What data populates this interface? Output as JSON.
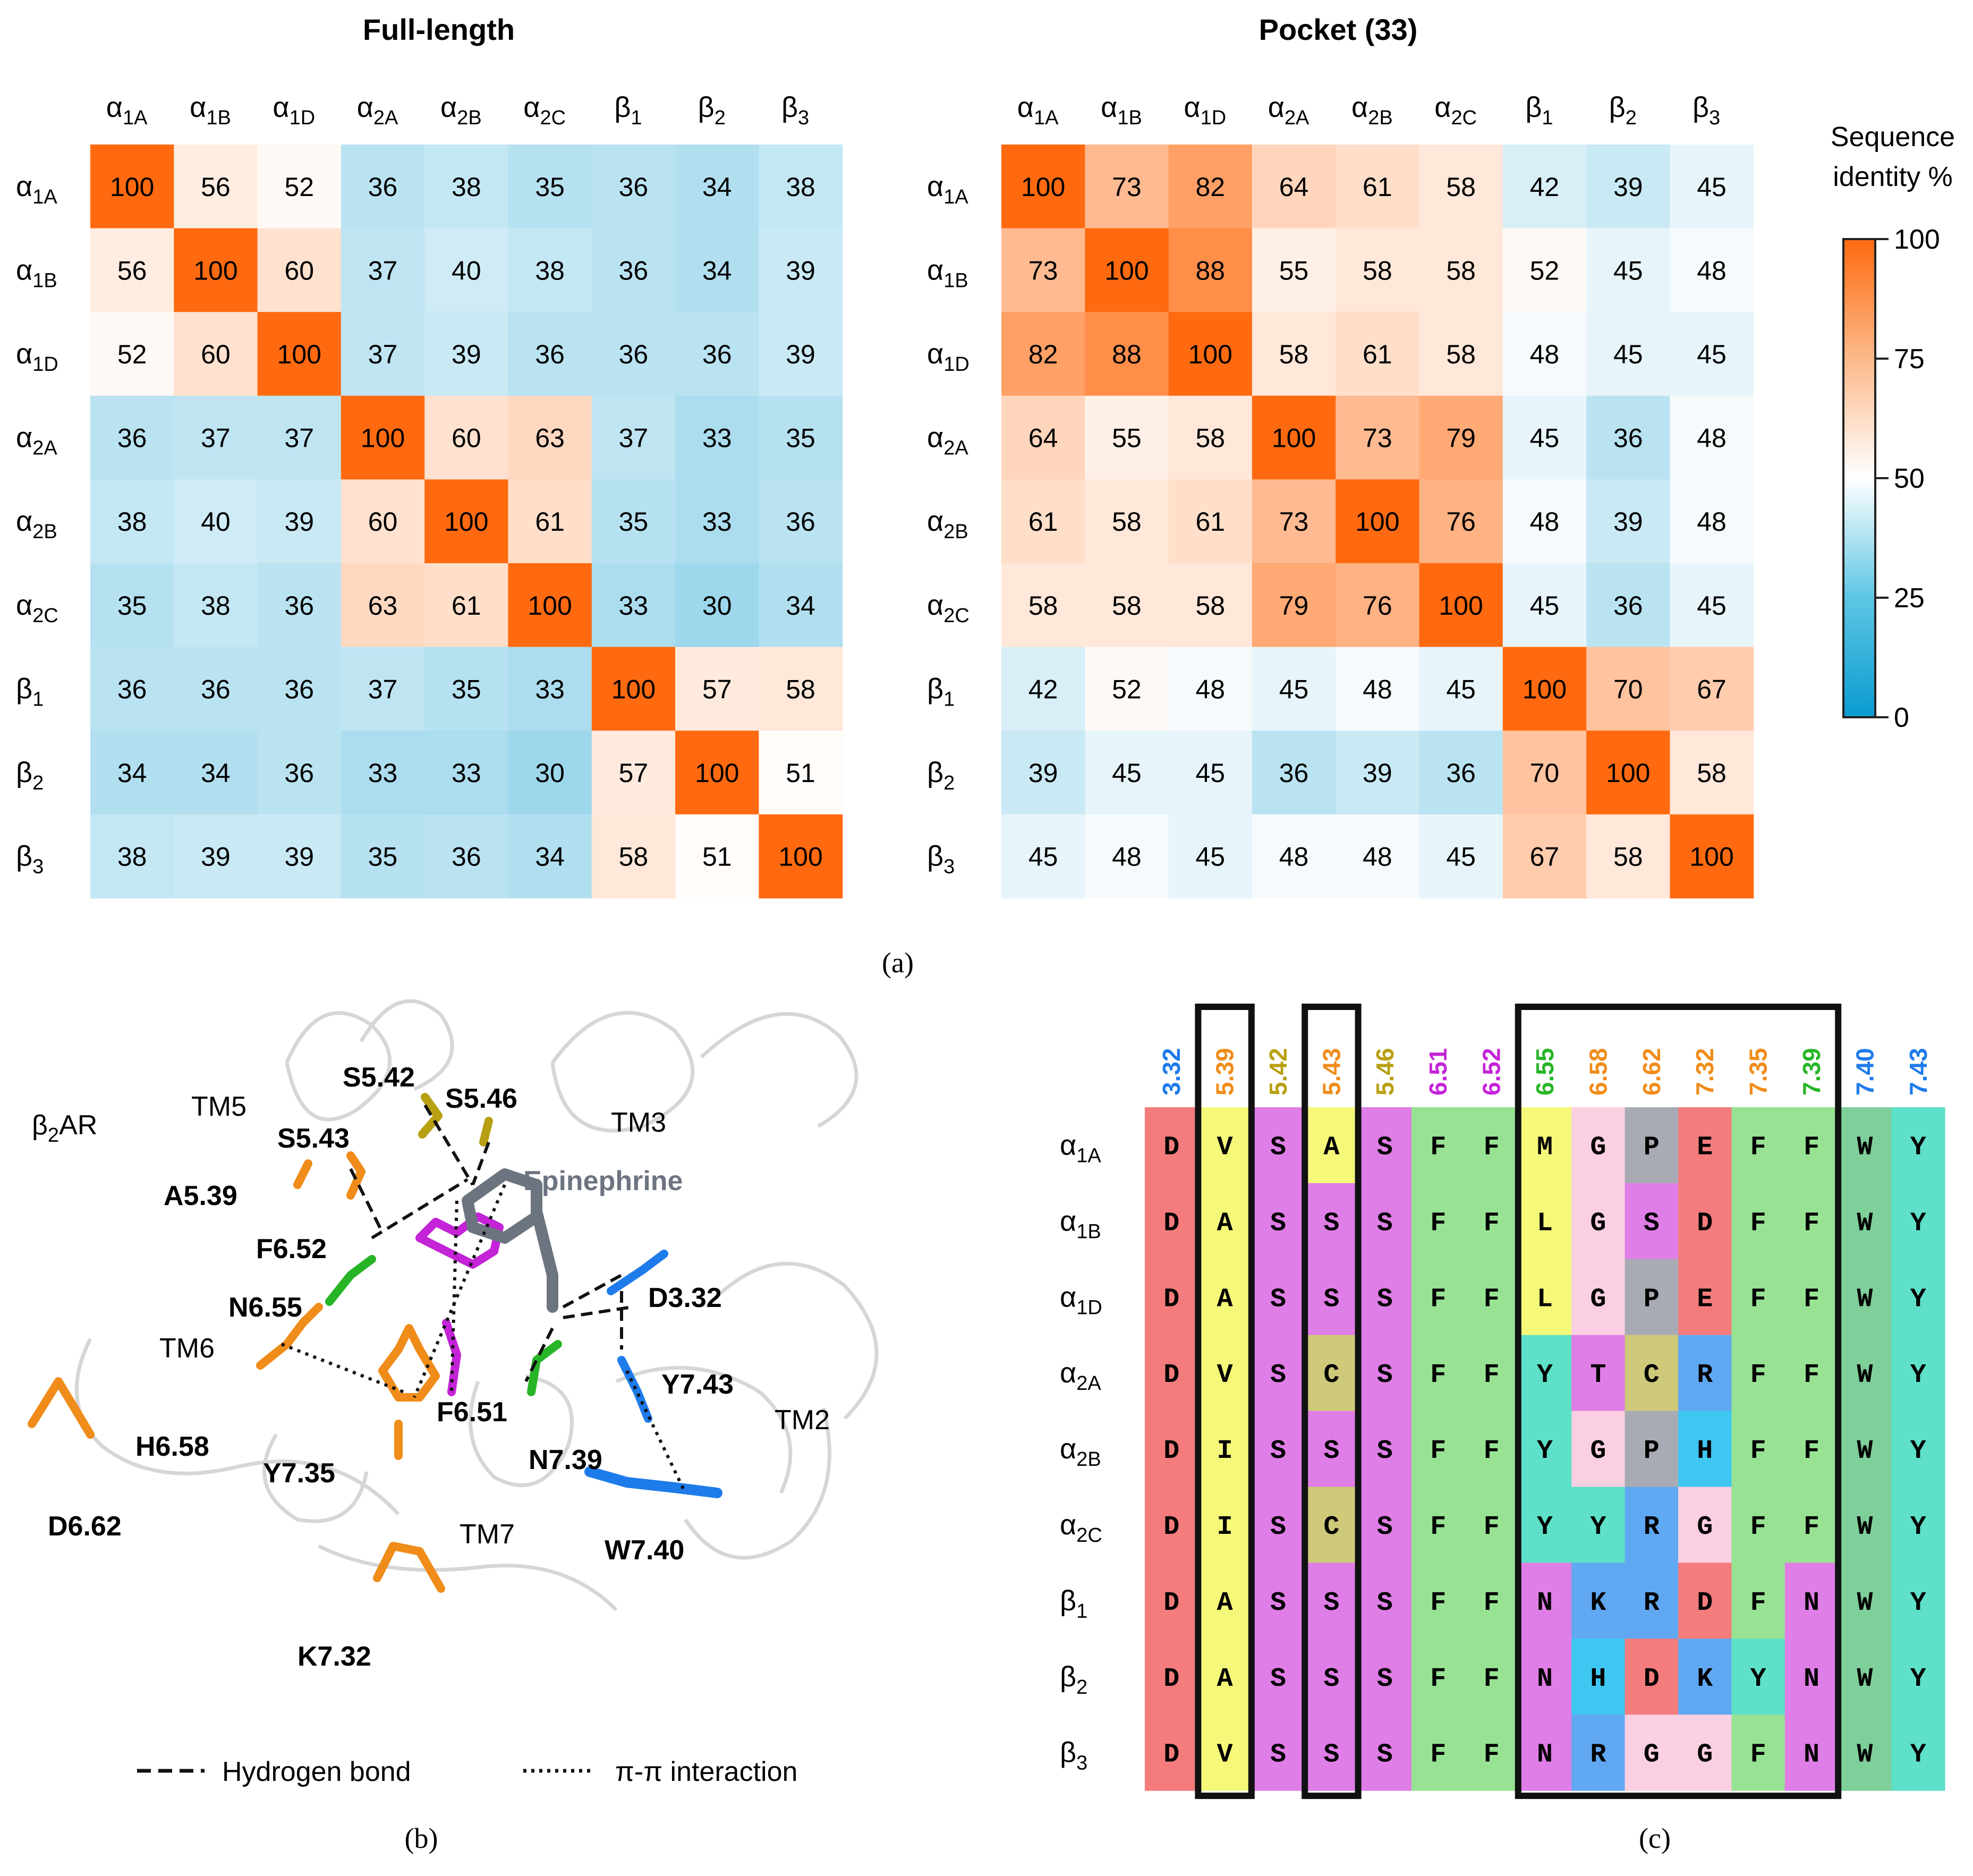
{
  "heatmaps": [
    {
      "title": "Full-length",
      "labels": [
        {
          "base": "α",
          "sub": "1A"
        },
        {
          "base": "α",
          "sub": "1B"
        },
        {
          "base": "α",
          "sub": "1D"
        },
        {
          "base": "α",
          "sub": "2A"
        },
        {
          "base": "α",
          "sub": "2B"
        },
        {
          "base": "α",
          "sub": "2C"
        },
        {
          "base": "β",
          "sub": "1"
        },
        {
          "base": "β",
          "sub": "2"
        },
        {
          "base": "β",
          "sub": "3"
        }
      ],
      "matrix": [
        [
          100,
          56,
          52,
          36,
          38,
          35,
          36,
          34,
          38
        ],
        [
          56,
          100,
          60,
          37,
          40,
          38,
          36,
          34,
          39
        ],
        [
          52,
          60,
          100,
          37,
          39,
          36,
          36,
          36,
          39
        ],
        [
          36,
          37,
          37,
          100,
          60,
          63,
          37,
          33,
          35
        ],
        [
          38,
          40,
          39,
          60,
          100,
          61,
          35,
          33,
          36
        ],
        [
          35,
          38,
          36,
          63,
          61,
          100,
          33,
          30,
          34
        ],
        [
          36,
          36,
          36,
          37,
          35,
          33,
          100,
          57,
          58
        ],
        [
          34,
          34,
          36,
          33,
          33,
          30,
          57,
          100,
          51
        ],
        [
          38,
          39,
          39,
          35,
          36,
          34,
          58,
          51,
          100
        ]
      ]
    },
    {
      "title": "Pocket (33)",
      "labels": [
        {
          "base": "α",
          "sub": "1A"
        },
        {
          "base": "α",
          "sub": "1B"
        },
        {
          "base": "α",
          "sub": "1D"
        },
        {
          "base": "α",
          "sub": "2A"
        },
        {
          "base": "α",
          "sub": "2B"
        },
        {
          "base": "α",
          "sub": "2C"
        },
        {
          "base": "β",
          "sub": "1"
        },
        {
          "base": "β",
          "sub": "2"
        },
        {
          "base": "β",
          "sub": "3"
        }
      ],
      "matrix": [
        [
          100,
          73,
          82,
          64,
          61,
          58,
          42,
          39,
          45
        ],
        [
          73,
          100,
          88,
          55,
          58,
          58,
          52,
          45,
          48
        ],
        [
          82,
          88,
          100,
          58,
          61,
          58,
          48,
          45,
          45
        ],
        [
          64,
          55,
          58,
          100,
          73,
          79,
          45,
          36,
          48
        ],
        [
          61,
          58,
          61,
          73,
          100,
          76,
          48,
          39,
          48
        ],
        [
          58,
          58,
          58,
          79,
          76,
          100,
          45,
          36,
          45
        ],
        [
          42,
          52,
          48,
          45,
          48,
          45,
          100,
          70,
          67
        ],
        [
          39,
          45,
          45,
          36,
          39,
          36,
          70,
          100,
          58
        ],
        [
          45,
          48,
          45,
          48,
          48,
          45,
          67,
          58,
          100
        ]
      ]
    }
  ],
  "chart_data": {
    "type": "heatmap",
    "panels": [
      "Full-length",
      "Pocket (33)"
    ],
    "row_labels": [
      "α1A",
      "α1B",
      "α1D",
      "α2A",
      "α2B",
      "α2C",
      "β1",
      "β2",
      "β3"
    ],
    "col_labels": [
      "α1A",
      "α1B",
      "α1D",
      "α2A",
      "α2B",
      "α2C",
      "β1",
      "β2",
      "β3"
    ],
    "value_range": [
      0,
      100
    ],
    "colorbar_label": "Sequence identity %"
  },
  "colorbar": {
    "title_line1": "Sequence",
    "title_line2": "identity %",
    "ticks": [
      "100",
      "75",
      "50",
      "25",
      "0"
    ],
    "low_color": "#0a9bd0",
    "mid_color": "#ffffff",
    "high_color": "#ff6a10"
  },
  "caption_a": "(a)",
  "caption_b": "(b)",
  "caption_c": "(c)",
  "structure": {
    "receptor": {
      "base": "β",
      "sub": "2",
      "rest": "AR"
    },
    "ligand": "Epinephrine",
    "helices": [
      "TM5",
      "TM3",
      "TM6",
      "TM2",
      "TM7"
    ],
    "residues": [
      {
        "label": "S5.42",
        "color": "#b8a012"
      },
      {
        "label": "S5.46",
        "color": "#b8a012"
      },
      {
        "label": "S5.43",
        "color": "#f08c1a"
      },
      {
        "label": "A5.39",
        "color": "#f08c1a"
      },
      {
        "label": "F6.52",
        "color": "#c423d8"
      },
      {
        "label": "N6.55",
        "color": "#27b527"
      },
      {
        "label": "D3.32",
        "color": "#1e7bea"
      },
      {
        "label": "Y7.43",
        "color": "#1e7bea"
      },
      {
        "label": "F6.51",
        "color": "#c423d8"
      },
      {
        "label": "H6.58",
        "color": "#f08c1a"
      },
      {
        "label": "Y7.35",
        "color": "#f08c1a"
      },
      {
        "label": "N7.39",
        "color": "#27b527"
      },
      {
        "label": "D6.62",
        "color": "#f08c1a"
      },
      {
        "label": "W7.40",
        "color": "#1e7bea"
      },
      {
        "label": "K7.32",
        "color": "#f08c1a"
      }
    ],
    "legend_hbond": "Hydrogen bond",
    "legend_pipi": "π-π interaction"
  },
  "alignment": {
    "positions": [
      {
        "label": "3.32",
        "color": "#1e7bea"
      },
      {
        "label": "5.39",
        "color": "#f08c1a"
      },
      {
        "label": "5.42",
        "color": "#b8a012"
      },
      {
        "label": "5.43",
        "color": "#f08c1a"
      },
      {
        "label": "5.46",
        "color": "#b8a012"
      },
      {
        "label": "6.51",
        "color": "#c423d8"
      },
      {
        "label": "6.52",
        "color": "#c423d8"
      },
      {
        "label": "6.55",
        "color": "#27b527"
      },
      {
        "label": "6.58",
        "color": "#f08c1a"
      },
      {
        "label": "6.62",
        "color": "#f08c1a"
      },
      {
        "label": "7.32",
        "color": "#f08c1a"
      },
      {
        "label": "7.35",
        "color": "#f08c1a"
      },
      {
        "label": "7.39",
        "color": "#27b527"
      },
      {
        "label": "7.40",
        "color": "#1e7bea"
      },
      {
        "label": "7.43",
        "color": "#1e7bea"
      }
    ],
    "rows": [
      {
        "base": "α",
        "sub": "1A",
        "seq": [
          "D",
          "V",
          "S",
          "A",
          "S",
          "F",
          "F",
          "M",
          "G",
          "P",
          "E",
          "F",
          "F",
          "W",
          "Y"
        ]
      },
      {
        "base": "α",
        "sub": "1B",
        "seq": [
          "D",
          "A",
          "S",
          "S",
          "S",
          "F",
          "F",
          "L",
          "G",
          "S",
          "D",
          "F",
          "F",
          "W",
          "Y"
        ]
      },
      {
        "base": "α",
        "sub": "1D",
        "seq": [
          "D",
          "A",
          "S",
          "S",
          "S",
          "F",
          "F",
          "L",
          "G",
          "P",
          "E",
          "F",
          "F",
          "W",
          "Y"
        ]
      },
      {
        "base": "α",
        "sub": "2A",
        "seq": [
          "D",
          "V",
          "S",
          "C",
          "S",
          "F",
          "F",
          "Y",
          "T",
          "C",
          "R",
          "F",
          "F",
          "W",
          "Y"
        ]
      },
      {
        "base": "α",
        "sub": "2B",
        "seq": [
          "D",
          "I",
          "S",
          "S",
          "S",
          "F",
          "F",
          "Y",
          "G",
          "P",
          "H",
          "F",
          "F",
          "W",
          "Y"
        ]
      },
      {
        "base": "α",
        "sub": "2C",
        "seq": [
          "D",
          "I",
          "S",
          "C",
          "S",
          "F",
          "F",
          "Y",
          "Y",
          "R",
          "G",
          "F",
          "F",
          "W",
          "Y"
        ]
      },
      {
        "base": "β",
        "sub": "1",
        "seq": [
          "D",
          "A",
          "S",
          "S",
          "S",
          "F",
          "F",
          "N",
          "K",
          "R",
          "D",
          "F",
          "N",
          "W",
          "Y"
        ]
      },
      {
        "base": "β",
        "sub": "2",
        "seq": [
          "D",
          "A",
          "S",
          "S",
          "S",
          "F",
          "F",
          "N",
          "H",
          "D",
          "K",
          "Y",
          "N",
          "W",
          "Y"
        ]
      },
      {
        "base": "β",
        "sub": "3",
        "seq": [
          "D",
          "V",
          "S",
          "S",
          "S",
          "F",
          "F",
          "N",
          "R",
          "G",
          "G",
          "F",
          "N",
          "W",
          "Y"
        ]
      }
    ],
    "residue_colors": {
      "D": "#f47c7c",
      "E": "#f47c7c",
      "A": "#f6f87a",
      "V": "#f6f87a",
      "I": "#f6f87a",
      "L": "#f6f87a",
      "M": "#f6f87a",
      "S": "#df7ee6",
      "T": "#df7ee6",
      "N": "#df7ee6",
      "Q": "#df7ee6",
      "F": "#98e294",
      "W": "#7fcf9a",
      "Y": "#5fe0c8",
      "C": "#cfc97a",
      "G": "#fbcfe2",
      "P": "#a9abb4",
      "R": "#61a8f3",
      "K": "#61a8f3",
      "H": "#3fc7f2"
    }
  }
}
